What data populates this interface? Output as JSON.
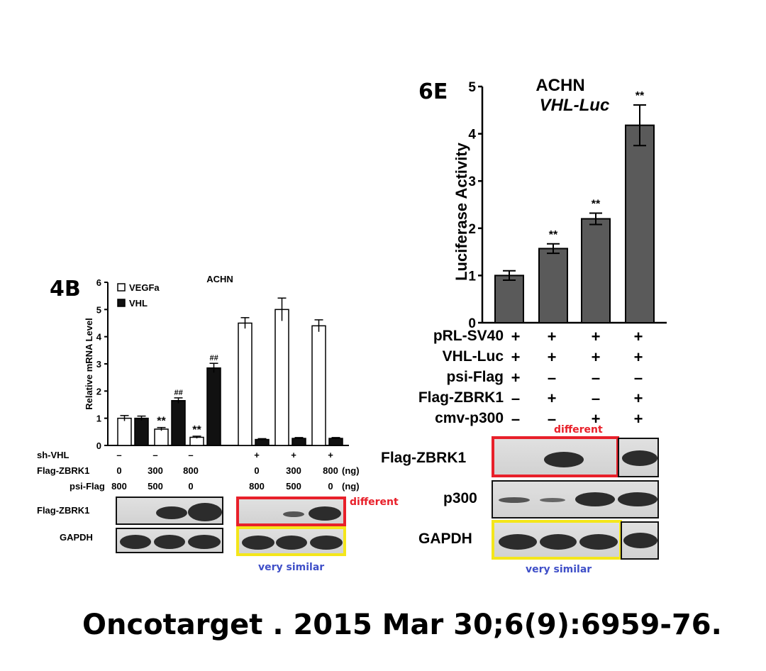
{
  "panel_4b": {
    "label": "4B",
    "chart_data": {
      "type": "bar",
      "title": "ACHN",
      "xlabel": "",
      "ylabel": "Relative mRNA Level",
      "ylim": [
        0,
        6
      ],
      "yticks": [
        "0",
        "1",
        "2",
        "3",
        "4",
        "5",
        "6"
      ],
      "legend_position": "top-left",
      "groups": 6,
      "series": [
        {
          "name": "VEGFa",
          "color": "#ffffff",
          "values": [
            1.0,
            0.6,
            0.3,
            4.5,
            5.0,
            4.4
          ],
          "errors": [
            0.1,
            0.06,
            0.04,
            0.2,
            0.42,
            0.22
          ],
          "labels": [
            "",
            "**",
            "**",
            "",
            "",
            ""
          ]
        },
        {
          "name": "VHL",
          "color": "#111111",
          "values": [
            1.0,
            1.65,
            2.85,
            0.22,
            0.26,
            0.26
          ],
          "errors": [
            0.08,
            0.1,
            0.17,
            0.03,
            0.03,
            0.03
          ],
          "labels": [
            "",
            "##",
            "##",
            "",
            "",
            ""
          ]
        }
      ]
    },
    "conditions": [
      {
        "name": "sh-VHL",
        "values": [
          "–",
          "–",
          "–",
          "+",
          "+",
          "+"
        ],
        "unit": ""
      },
      {
        "name": "Flag-ZBRK1",
        "values": [
          "0",
          "300",
          "800",
          "0",
          "300",
          "800"
        ],
        "unit": "(ng)"
      },
      {
        "name": "psi-Flag",
        "values": [
          "800",
          "500",
          "0",
          "800",
          "500",
          "0"
        ],
        "unit": "(ng)"
      }
    ],
    "blots": [
      {
        "name": "Flag-ZBRK1"
      },
      {
        "name": "GAPDH"
      }
    ],
    "annotations": {
      "different": "different",
      "very_similar": "very similar"
    }
  },
  "panel_6e": {
    "label": "6E",
    "chart_data": {
      "type": "bar",
      "title": "ACHN",
      "subtitle": "VHL-Luc",
      "xlabel": "",
      "ylabel": "Luciferase Activity",
      "ylim": [
        0,
        5
      ],
      "yticks": [
        "0",
        "1",
        "2",
        "3",
        "4",
        "5"
      ],
      "series": [
        {
          "name": "",
          "color": "#5a5a5a",
          "values": [
            1.0,
            1.57,
            2.2,
            4.18
          ],
          "errors": [
            0.1,
            0.1,
            0.12,
            0.43
          ],
          "labels": [
            "",
            "**",
            "**",
            "**"
          ]
        }
      ]
    },
    "conditions": [
      {
        "name": "pRL-SV40",
        "values": [
          "+",
          "+",
          "+",
          "+"
        ]
      },
      {
        "name": "VHL-Luc",
        "values": [
          "+",
          "+",
          "+",
          "+"
        ]
      },
      {
        "name": "psi-Flag",
        "values": [
          "+",
          "–",
          "–",
          "–"
        ]
      },
      {
        "name": "Flag-ZBRK1",
        "values": [
          "–",
          "+",
          "–",
          "+"
        ]
      },
      {
        "name": "cmv-p300",
        "values": [
          "–",
          "–",
          "+",
          "+"
        ]
      }
    ],
    "blots": [
      {
        "name": "Flag-ZBRK1"
      },
      {
        "name": "p300"
      },
      {
        "name": "GAPDH"
      }
    ],
    "annotations": {
      "different": "different",
      "very_similar": "very similar"
    }
  },
  "citation": "Oncotarget . 2015 Mar 30;6(9):6959-76."
}
